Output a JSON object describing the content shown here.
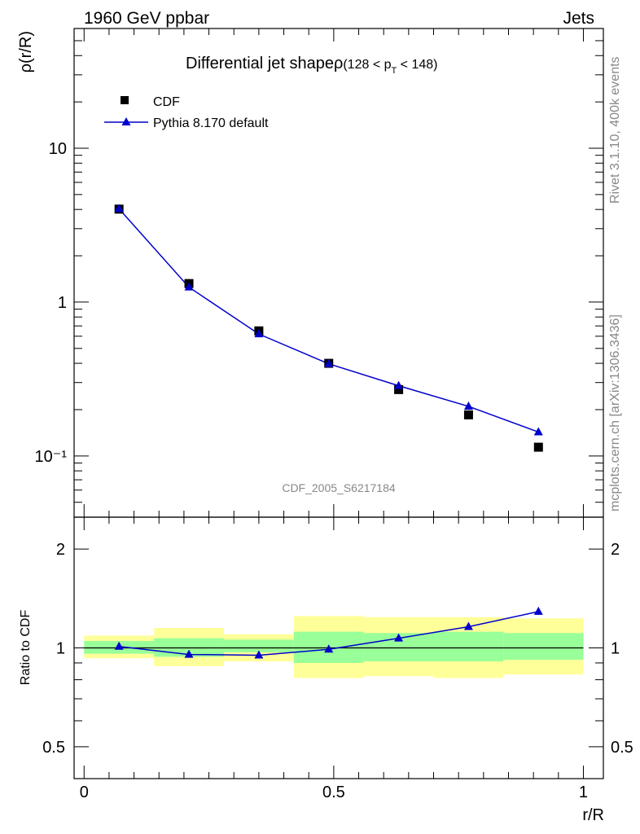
{
  "header": {
    "left": "1960 GeV ppbar",
    "right": "Jets"
  },
  "side_labels": {
    "top": "Rivet 3.1.10,  400k events",
    "bottom": "mcplots.cern.ch [arXiv:1306.3436]"
  },
  "colors": {
    "mc": "#0000cc",
    "data": "#000000",
    "band_inner": "#99ff99",
    "band_outer": "#ffff99"
  },
  "chart_data": [
    {
      "type": "scatter",
      "title_main": "Differential jet shapeρ",
      "title_range": "(128 < p",
      "title_sub": "T",
      "title_range_end": " < 148)",
      "ylabel": "ρ(r/R)",
      "yscale": "log",
      "ylim": [
        0.04,
        60
      ],
      "xlim": [
        -0.02,
        1.04
      ],
      "yticks": [
        {
          "value": 10,
          "label": "10"
        },
        {
          "value": 1,
          "label": "1"
        },
        {
          "value": 0.1,
          "label": "10⁻¹"
        }
      ],
      "watermark": "CDF_2005_S6217184",
      "legend": {
        "position": "top-left"
      },
      "series": [
        {
          "name": "CDF",
          "marker": "square",
          "x": [
            0.07,
            0.21,
            0.35,
            0.49,
            0.63,
            0.77,
            0.91
          ],
          "y": [
            4.02,
            1.32,
            0.65,
            0.4,
            0.27,
            0.185,
            0.114
          ]
        },
        {
          "name": "Pythia 8.170 default",
          "marker": "triangle",
          "line": true,
          "x": [
            0.07,
            0.21,
            0.35,
            0.49,
            0.63,
            0.77,
            0.91
          ],
          "y": [
            4.04,
            1.25,
            0.62,
            0.397,
            0.286,
            0.21,
            0.143
          ]
        }
      ]
    },
    {
      "type": "scatter",
      "ylabel": "Ratio to CDF",
      "xlabel": "r/R",
      "ylim": [
        0.4,
        2.5
      ],
      "yscale": "log",
      "xlim": [
        -0.02,
        1.04
      ],
      "yticks": [
        {
          "value": 2,
          "label": "2"
        },
        {
          "value": 1,
          "label": "1"
        },
        {
          "value": 0.5,
          "label": "0.5"
        }
      ],
      "xticks": [
        {
          "value": 0,
          "label": "0"
        },
        {
          "value": 0.5,
          "label": "0.5"
        },
        {
          "value": 1,
          "label": "1"
        }
      ],
      "bands": {
        "bins": [
          [
            0.0,
            0.14
          ],
          [
            0.14,
            0.28
          ],
          [
            0.28,
            0.42
          ],
          [
            0.42,
            0.56
          ],
          [
            0.56,
            0.7
          ],
          [
            0.7,
            0.84
          ],
          [
            0.84,
            1.0
          ]
        ],
        "inner": [
          [
            0.96,
            1.05
          ],
          [
            0.94,
            1.07
          ],
          [
            0.97,
            1.06
          ],
          [
            0.9,
            1.12
          ],
          [
            0.91,
            1.11
          ],
          [
            0.91,
            1.12
          ],
          [
            0.92,
            1.11
          ]
        ],
        "outer": [
          [
            0.93,
            1.09
          ],
          [
            0.88,
            1.15
          ],
          [
            0.91,
            1.1
          ],
          [
            0.81,
            1.25
          ],
          [
            0.82,
            1.24
          ],
          [
            0.81,
            1.24
          ],
          [
            0.83,
            1.23
          ]
        ]
      },
      "series": [
        {
          "name": "Pythia 8.170 default",
          "marker": "triangle",
          "line": true,
          "x": [
            0.07,
            0.21,
            0.35,
            0.49,
            0.63,
            0.77,
            0.91
          ],
          "y": [
            1.01,
            0.955,
            0.95,
            0.99,
            1.07,
            1.16,
            1.29
          ],
          "err": [
            0.01,
            0.01,
            0.01,
            0.01,
            0.02,
            0.025,
            0.03
          ]
        }
      ]
    }
  ]
}
